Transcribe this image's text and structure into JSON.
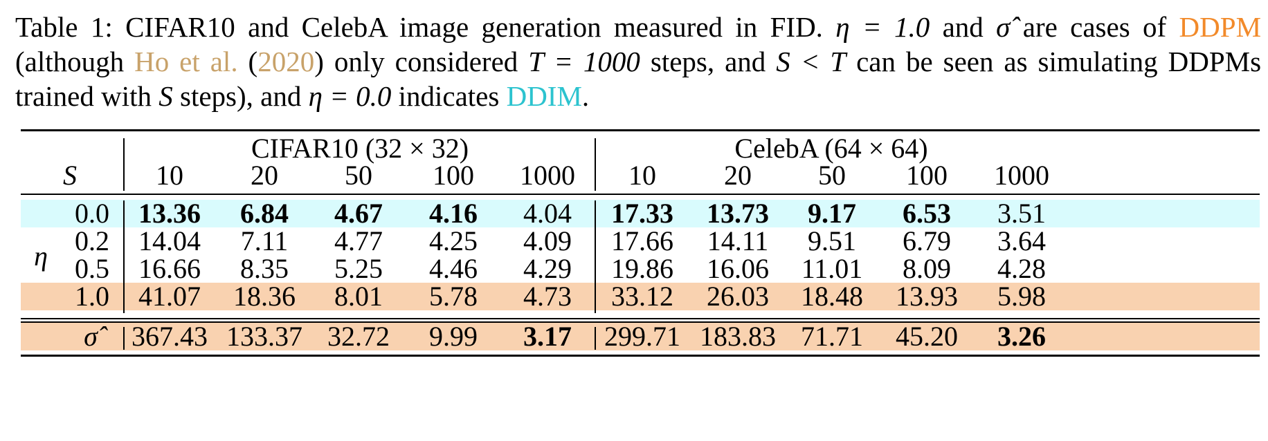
{
  "caption": {
    "part1": "Table 1: CIFAR10 and CelebA image generation measured in FID.",
    "eta_eq_1": "η = 1.0",
    "part2": "and",
    "sigma_hat": "σ̂",
    "part3": "are cases of",
    "ddpm_link": "DDPM",
    "part4": "(although",
    "ho_link": "Ho et al.",
    "paren_open": "(",
    "year_link": "2020",
    "part5": ") only considered",
    "t_eq": "T = 1000",
    "part6": "steps, and",
    "s_lt_t": "S < T",
    "part7": "can be seen as simulating DDPMs trained with",
    "s_var": "S",
    "part8": "steps), and",
    "eta_eq_0": "η = 0.0",
    "part9": "indicates",
    "ddim_link": "DDIM",
    "period": ".",
    "colors": {
      "ddpm": "#f28a2a",
      "ho": "#c8a26a",
      "ddim": "#2cc3cf"
    }
  },
  "table": {
    "header_s": "S",
    "eta_label": "η",
    "cifar_title": "CIFAR10 (32 × 32)",
    "celeba_title": "CelebA (64 × 64)",
    "steps": [
      "10",
      "20",
      "50",
      "100",
      "1000",
      "10",
      "20",
      "50",
      "100",
      "1000"
    ],
    "rows": [
      {
        "label": "0.0",
        "values": [
          "13.36",
          "6.84",
          "4.67",
          "4.16",
          "4.04",
          "17.33",
          "13.73",
          "9.17",
          "6.53",
          "3.51"
        ],
        "bold": [
          true,
          true,
          true,
          true,
          false,
          true,
          true,
          true,
          true,
          false
        ],
        "highlight": "#d9fbfd"
      },
      {
        "label": "0.2",
        "values": [
          "14.04",
          "7.11",
          "4.77",
          "4.25",
          "4.09",
          "17.66",
          "14.11",
          "9.51",
          "6.79",
          "3.64"
        ],
        "bold": [
          false,
          false,
          false,
          false,
          false,
          false,
          false,
          false,
          false,
          false
        ],
        "highlight": ""
      },
      {
        "label": "0.5",
        "values": [
          "16.66",
          "8.35",
          "5.25",
          "4.46",
          "4.29",
          "19.86",
          "16.06",
          "11.01",
          "8.09",
          "4.28"
        ],
        "bold": [
          false,
          false,
          false,
          false,
          false,
          false,
          false,
          false,
          false,
          false
        ],
        "highlight": ""
      },
      {
        "label": "1.0",
        "values": [
          "41.07",
          "18.36",
          "8.01",
          "5.78",
          "4.73",
          "33.12",
          "26.03",
          "18.48",
          "13.93",
          "5.98"
        ],
        "bold": [
          false,
          false,
          false,
          false,
          false,
          false,
          false,
          false,
          false,
          false
        ],
        "highlight": "#f9d2b0"
      },
      {
        "label": "σ̂",
        "values": [
          "367.43",
          "133.37",
          "32.72",
          "9.99",
          "3.17",
          "299.71",
          "183.83",
          "71.71",
          "45.20",
          "3.26"
        ],
        "bold": [
          false,
          false,
          false,
          false,
          true,
          false,
          false,
          false,
          false,
          true
        ],
        "highlight": "#f9d2b0"
      }
    ]
  }
}
